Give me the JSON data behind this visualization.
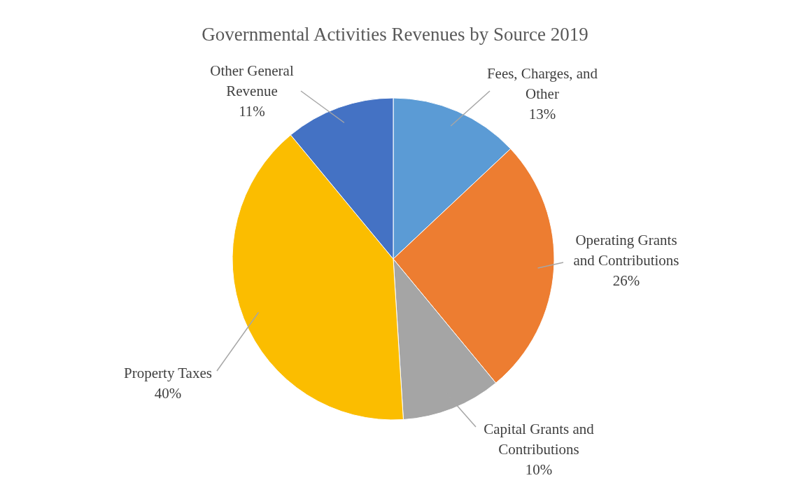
{
  "chart_data": {
    "type": "pie",
    "title": "Governmental Activities Revenues by Source 2019",
    "categories": [
      "Fees, Charges, and Other",
      "Operating Grants and Contributions",
      "Capital Grants and Contributions",
      "Property Taxes",
      "Other General Revenue"
    ],
    "values": [
      13,
      26,
      10,
      40,
      11
    ],
    "value_labels": [
      "13%",
      "26%",
      "10%",
      "40%",
      "11%"
    ],
    "colors": [
      "#5b9bd5",
      "#ed7d31",
      "#a5a5a5",
      "#fbbd00",
      "#4472c4"
    ]
  }
}
